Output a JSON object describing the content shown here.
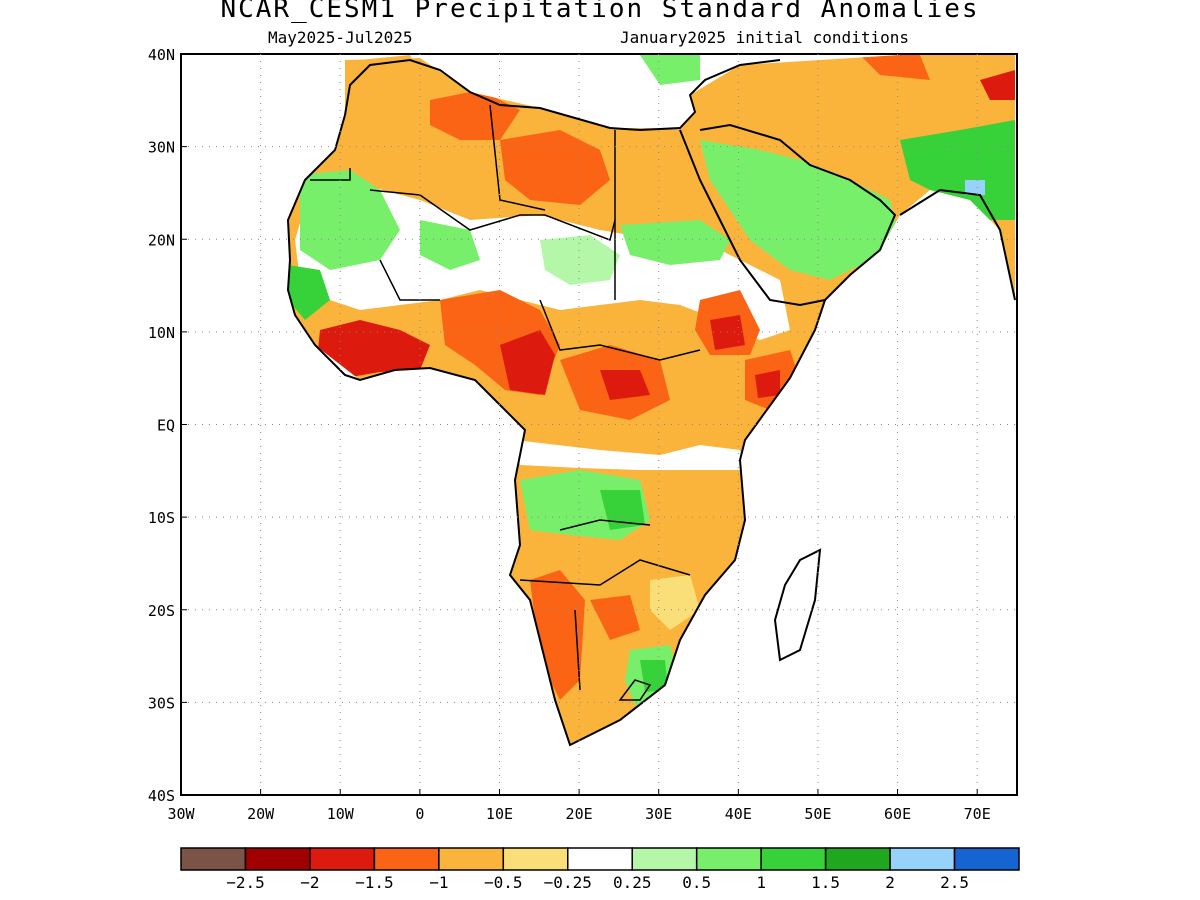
{
  "title": "NCAR_CESM1 Precipitation Standard Anomalies",
  "subtitle_left": "May2025-Jul2025",
  "subtitle_right": "January2025 initial conditions",
  "map": {
    "lon_range": [
      -30,
      75
    ],
    "lat_range": [
      -40,
      40
    ],
    "lon_ticks": [
      {
        "value": -30,
        "label": "30W"
      },
      {
        "value": -20,
        "label": "20W"
      },
      {
        "value": -10,
        "label": "10W"
      },
      {
        "value": 0,
        "label": "0"
      },
      {
        "value": 10,
        "label": "10E"
      },
      {
        "value": 20,
        "label": "20E"
      },
      {
        "value": 30,
        "label": "30E"
      },
      {
        "value": 40,
        "label": "40E"
      },
      {
        "value": 50,
        "label": "50E"
      },
      {
        "value": 60,
        "label": "60E"
      },
      {
        "value": 70,
        "label": "70E"
      }
    ],
    "lat_ticks": [
      {
        "value": 40,
        "label": "40N"
      },
      {
        "value": 30,
        "label": "30N"
      },
      {
        "value": 20,
        "label": "20N"
      },
      {
        "value": 10,
        "label": "10N"
      },
      {
        "value": 0,
        "label": "EQ"
      },
      {
        "value": -10,
        "label": "10S"
      },
      {
        "value": -20,
        "label": "20S"
      },
      {
        "value": -30,
        "label": "30S"
      },
      {
        "value": -40,
        "label": "40S"
      }
    ],
    "grid": "dotted"
  },
  "colorbar": {
    "colors": [
      "#7a5446",
      "#a00000",
      "#dd1a0e",
      "#fa6414",
      "#fab43c",
      "#fadf78",
      "#ffffff",
      "#b4f7a9",
      "#78ef6a",
      "#37d239",
      "#1fa81f",
      "#96d2fa",
      "#1464d2"
    ],
    "labels": [
      "-2.5",
      "-2",
      "-1.5",
      "-1",
      "-0.5",
      "-0.25",
      "0.25",
      "0.5",
      "1",
      "1.5",
      "2",
      "2.5"
    ]
  }
}
